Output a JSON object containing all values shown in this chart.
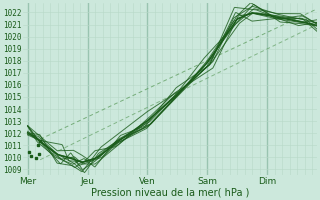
{
  "xlabel": "Pression niveau de la mer( hPa )",
  "background_color": "#cce8dc",
  "grid_color_minor": "#b8d8c8",
  "grid_color_major": "#99c4b0",
  "line_color": "#1a5c1a",
  "dashed_line_color": "#5a9a5a",
  "ylim": [
    1008.5,
    1022.8
  ],
  "yticks": [
    1009,
    1010,
    1011,
    1012,
    1013,
    1014,
    1015,
    1016,
    1017,
    1018,
    1019,
    1020,
    1021,
    1022
  ],
  "day_labels": [
    "Mer",
    "Jeu",
    "Ven",
    "Sam",
    "Dim"
  ],
  "day_positions": [
    0,
    24,
    48,
    72,
    96
  ],
  "xlim": [
    -2,
    116
  ]
}
